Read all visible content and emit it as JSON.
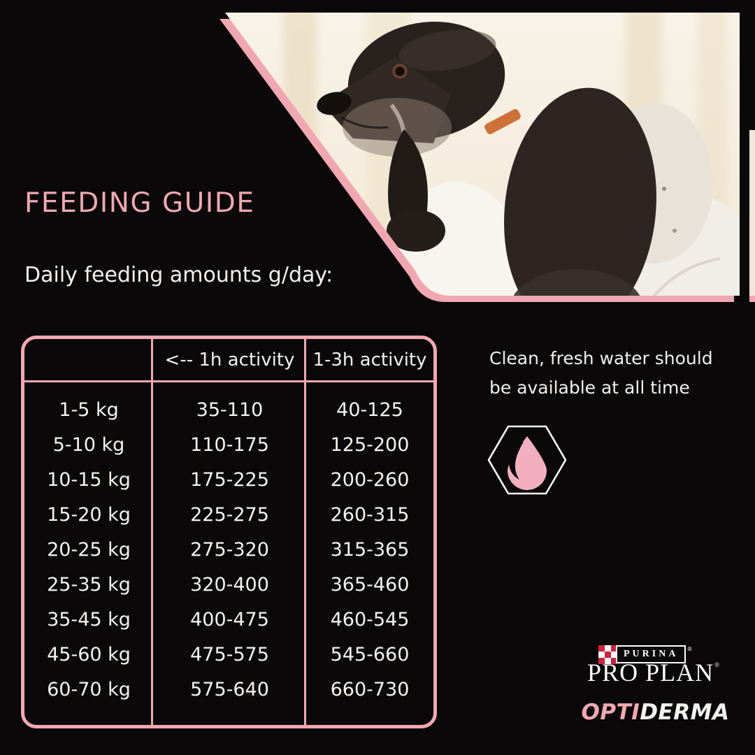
{
  "colors": {
    "background": "#0a0809",
    "accent_pink": "#f1a7b2",
    "droplet_pink": "#f3afc0",
    "text_white": "#f2efec",
    "purina_red": "#d0233a"
  },
  "header": {
    "title": "FEEDING GUIDE",
    "subtitle": "Daily feeding amounts g/day:"
  },
  "table": {
    "columns": [
      "",
      "<-- 1h activity",
      "1-3h activity"
    ],
    "rows": [
      [
        "1-5 kg",
        "35-110",
        "40-125"
      ],
      [
        "5-10 kg",
        "110-175",
        "125-200"
      ],
      [
        "10-15 kg",
        "175-225",
        "200-260"
      ],
      [
        "15-20 kg",
        "225-275",
        "260-315"
      ],
      [
        "20-25 kg",
        "275-320",
        "315-365"
      ],
      [
        "25-35 kg",
        "320-400",
        "365-460"
      ],
      [
        "35-45 kg",
        "400-475",
        "460-545"
      ],
      [
        "45-60 kg",
        "475-575",
        "545-660"
      ],
      [
        "60-70 kg",
        "575-640",
        "660-730"
      ]
    ]
  },
  "note": {
    "line1": "Clean, fresh water should",
    "line2": "be available at all time"
  },
  "icons": {
    "water_drop": "water-drop-icon",
    "purina_checkerboard": "purina-checkerboard-icon"
  },
  "brand": {
    "purina": "PURINA",
    "pro_plan": "PRO PLAN",
    "opti": "OPTI",
    "derma": "DERMA",
    "registered": "®"
  }
}
